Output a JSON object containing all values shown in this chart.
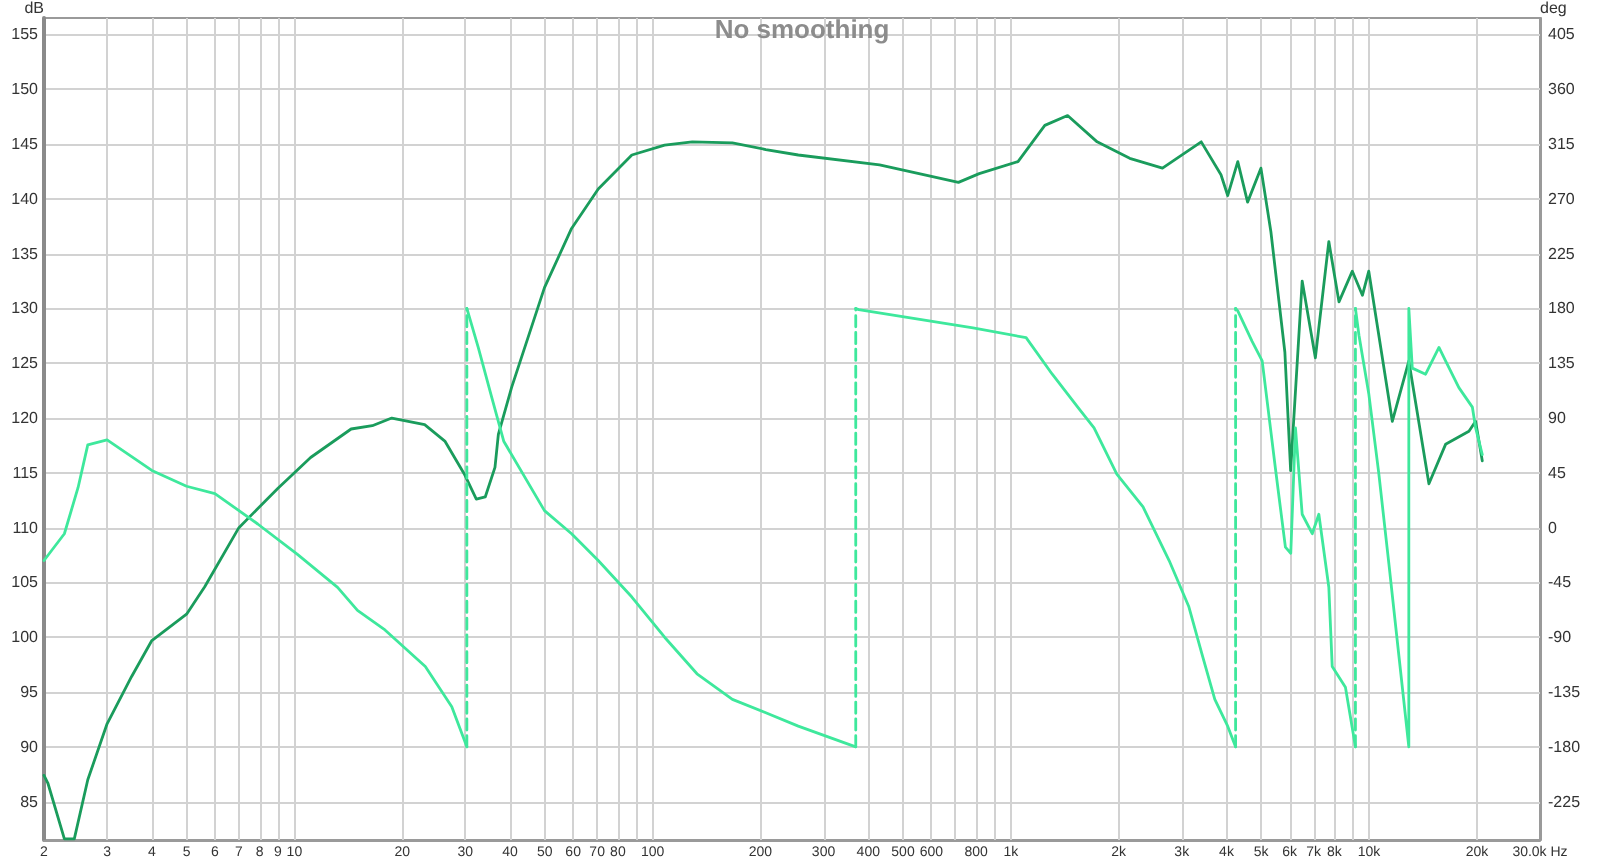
{
  "chart_data": {
    "type": "line",
    "title": "No smoothing",
    "ylabel": "dB",
    "y2label": "deg",
    "log": "x",
    "grid": true,
    "marker": "none",
    "xlim": [
      2,
      30000
    ],
    "xticks": [
      2,
      3,
      4,
      5,
      6,
      7,
      8,
      9,
      10,
      20,
      30,
      40,
      50,
      60,
      70,
      80,
      {
        "value": 90,
        "label": null
      },
      100,
      200,
      300,
      400,
      500,
      600,
      {
        "value": 700,
        "label": null
      },
      800,
      {
        "value": 900,
        "label": null
      },
      {
        "value": 1000,
        "label": "1k"
      },
      {
        "value": 2000,
        "label": "2k"
      },
      {
        "value": 3000,
        "label": "3k"
      },
      {
        "value": 4000,
        "label": "4k"
      },
      {
        "value": 5000,
        "label": "5k"
      },
      {
        "value": 6000,
        "label": "6k"
      },
      {
        "value": 7000,
        "label": "7k"
      },
      {
        "value": 8000,
        "label": "8k"
      },
      {
        "value": 9000,
        "label": null
      },
      {
        "value": 10000,
        "label": "10k"
      },
      {
        "value": 20000,
        "label": "20k"
      },
      {
        "value": 30000,
        "label": "30.0k Hz"
      }
    ],
    "ylim": [
      81.5,
      156.5
    ],
    "yticks": [
      85,
      90,
      95,
      100,
      105,
      110,
      115,
      120,
      125,
      130,
      135,
      140,
      145,
      150,
      155
    ],
    "y2lim": [
      -256.5,
      418.5
    ],
    "y2ticks": [
      -225,
      -180,
      -135,
      -90,
      -45,
      0,
      45,
      90,
      135,
      180,
      225,
      270,
      315,
      360,
      405
    ],
    "series": [
      {
        "color": "#1a9c5c",
        "x": [
          2,
          2.05,
          2.28,
          2.43,
          2.65,
          3.0,
          3.51,
          4.0,
          5.0,
          5.62,
          7.0,
          9.0,
          11.1,
          14.4,
          16.5,
          18.7,
          23.1,
          26.3,
          29.8,
          32.2,
          34.1,
          36.3,
          37.1,
          40.4,
          49.9,
          59.4,
          70.5,
          87.5,
          108,
          129,
          167,
          207,
          255,
          430,
          714,
          816,
          1047,
          1244,
          1440,
          1741,
          2147,
          2650,
          3400,
          3860,
          4030,
          4300,
          4580,
          4990,
          5320,
          5820,
          6040,
          6505,
          7080,
          7720,
          8240,
          8980,
          9580,
          9980,
          11610,
          12910,
          14690,
          16350,
          19000,
          19830,
          20700
        ],
        "values": [
          87.4,
          86.7,
          81.6,
          81.6,
          87.0,
          92.1,
          96.4,
          99.7,
          102.1,
          104.6,
          110.0,
          113.6,
          116.4,
          119.0,
          119.3,
          120.0,
          119.4,
          117.9,
          114.9,
          112.6,
          112.8,
          115.5,
          118.5,
          122.8,
          131.9,
          137.3,
          140.9,
          144.0,
          144.9,
          145.2,
          145.1,
          144.5,
          144.0,
          143.1,
          141.5,
          142.3,
          143.4,
          146.7,
          147.6,
          145.2,
          143.7,
          142.8,
          145.2,
          142.2,
          140.3,
          143.4,
          139.7,
          142.8,
          137.0,
          126.0,
          115.2,
          132.5,
          125.5,
          136.1,
          130.6,
          133.4,
          131.2,
          133.4,
          119.7,
          125.2,
          114.0,
          117.6,
          118.8,
          119.7,
          116.1
        ]
      },
      {
        "color": "#3ee89c",
        "axis": "y2",
        "x": [
          2,
          2.28,
          2.49,
          2.65,
          3.0,
          4.0,
          5.0,
          6.0,
          7.9,
          10.2,
          13.2,
          15.0,
          17.9,
          23.2,
          27.5,
          30.3
        ],
        "values": [
          -27,
          -5,
          33,
          68,
          72,
          47,
          34,
          28,
          3,
          -22,
          -49,
          -68,
          -84,
          -114,
          -147,
          -180
        ]
      },
      {
        "color": "#3ee89c",
        "axis": "y2",
        "line_style": "dashed",
        "x": [
          30.3,
          30.3
        ],
        "values": [
          -180,
          180
        ]
      },
      {
        "color": "#3ee89c",
        "axis": "y2",
        "x": [
          30.3,
          32.6,
          35.4,
          38.4,
          49.9,
          59.4,
          70.5,
          87.5,
          108,
          133,
          167,
          207,
          255,
          369
        ],
        "values": [
          180,
          148,
          109,
          71,
          14,
          -5,
          -27,
          -57,
          -90,
          -120,
          -141,
          -152,
          -163,
          -180
        ]
      },
      {
        "color": "#3ee89c",
        "axis": "y2",
        "line_style": "dashed",
        "x": [
          369,
          369
        ],
        "values": [
          -180,
          180
        ]
      },
      {
        "color": "#3ee89c",
        "axis": "y2",
        "x": [
          369,
          376,
          784,
          1103,
          1305,
          1537,
          1707,
          1976,
          2339,
          2766,
          3140,
          3410,
          3710,
          4030,
          4240
        ],
        "values": [
          180,
          179,
          164,
          156,
          126,
          99,
          82,
          44,
          17,
          -27,
          -65,
          -103,
          -141,
          -163,
          -180
        ]
      },
      {
        "color": "#3ee89c",
        "axis": "y2",
        "line_style": "dashed",
        "x": [
          4240,
          4240
        ],
        "values": [
          -180,
          180
        ]
      },
      {
        "color": "#3ee89c",
        "axis": "y2",
        "x": [
          4240,
          4300,
          4715,
          5030,
          5475,
          5840,
          6045,
          6230,
          6505,
          6940,
          7240,
          7720,
          7890,
          8590,
          9160
        ],
        "values": [
          180,
          178,
          153,
          137,
          49,
          -16,
          -21,
          82,
          11,
          -5,
          11,
          -49,
          -114,
          -131,
          -180
        ]
      },
      {
        "color": "#3ee89c",
        "axis": "y2",
        "line_style": "dashed",
        "x": [
          9160,
          9160
        ],
        "values": [
          -180,
          180
        ]
      },
      {
        "color": "#3ee89c",
        "axis": "y2",
        "x": [
          9160,
          9370,
          9980,
          10640,
          11360,
          12110,
          12910,
          12910,
          13200,
          14380,
          15670,
          16350,
          17810,
          19420,
          19830,
          20700
        ],
        "values": [
          180,
          158,
          110,
          45,
          -30,
          -105,
          -180,
          180,
          131,
          126,
          148,
          137,
          115,
          99,
          82,
          60
        ]
      }
    ]
  }
}
